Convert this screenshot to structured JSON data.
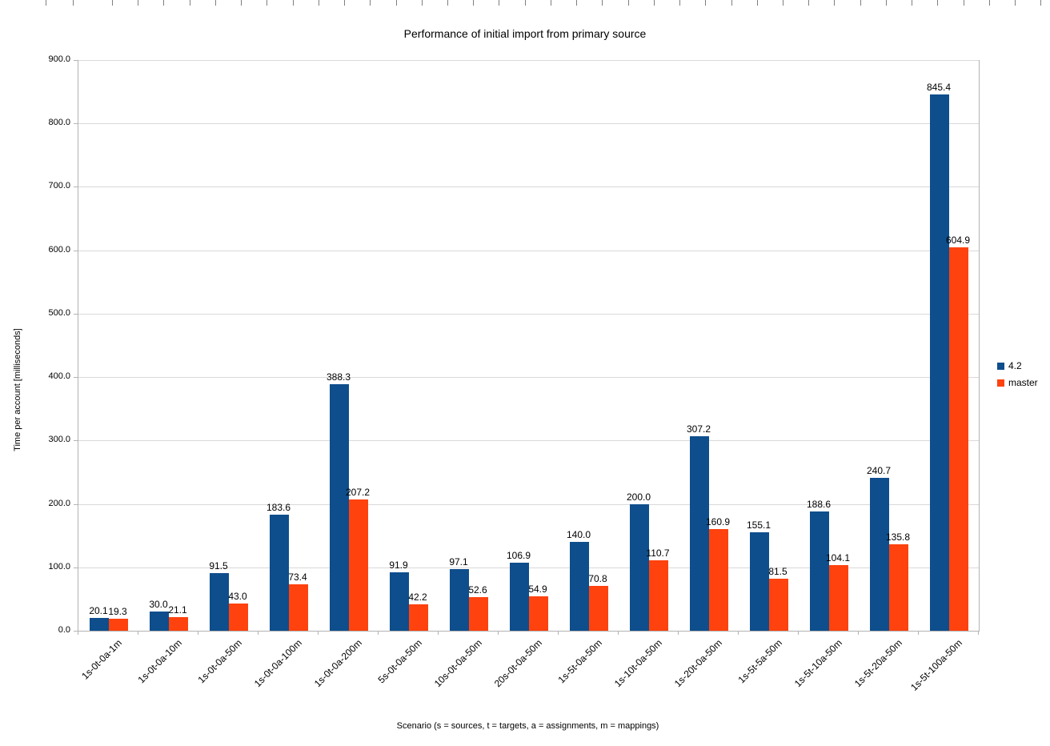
{
  "chart_data": {
    "type": "bar",
    "title": "Performance of initial import from primary source",
    "xlabel": "Scenario (s = sources, t = targets, a = assignments, m = mappings)",
    "ylabel": "Time per account [milliseconds]",
    "ylim": [
      0,
      900
    ],
    "ytick_step": 100,
    "ytick_labels": [
      "0.0",
      "100.0",
      "200.0",
      "300.0",
      "400.0",
      "500.0",
      "600.0",
      "700.0",
      "800.0",
      "900.0"
    ],
    "grid": true,
    "legend_position": "right",
    "categories": [
      "1s-0t-0a-1m",
      "1s-0t-0a-10m",
      "1s-0t-0a-50m",
      "1s-0t-0a-100m",
      "1s-0t-0a-200m",
      "5s-0t-0a-50m",
      "10s-0t-0a-50m",
      "20s-0t-0a-50m",
      "1s-5t-0a-50m",
      "1s-10t-0a-50m",
      "1s-20t-0a-50m",
      "1s-5t-5a-50m",
      "1s-5t-10a-50m",
      "1s-5t-20a-50m",
      "1s-5t-100a-50m"
    ],
    "series": [
      {
        "name": "4.2",
        "color": "#0e4e8c",
        "values": [
          20.1,
          30.0,
          91.5,
          183.6,
          388.3,
          91.9,
          97.1,
          106.9,
          140.0,
          200.0,
          307.2,
          155.1,
          188.6,
          240.7,
          845.4
        ]
      },
      {
        "name": "master",
        "color": "#ff420e",
        "values": [
          19.3,
          21.1,
          43.0,
          73.4,
          207.2,
          42.2,
          52.6,
          54.9,
          70.8,
          110.7,
          160.9,
          81.5,
          104.1,
          135.8,
          604.9
        ]
      }
    ]
  }
}
